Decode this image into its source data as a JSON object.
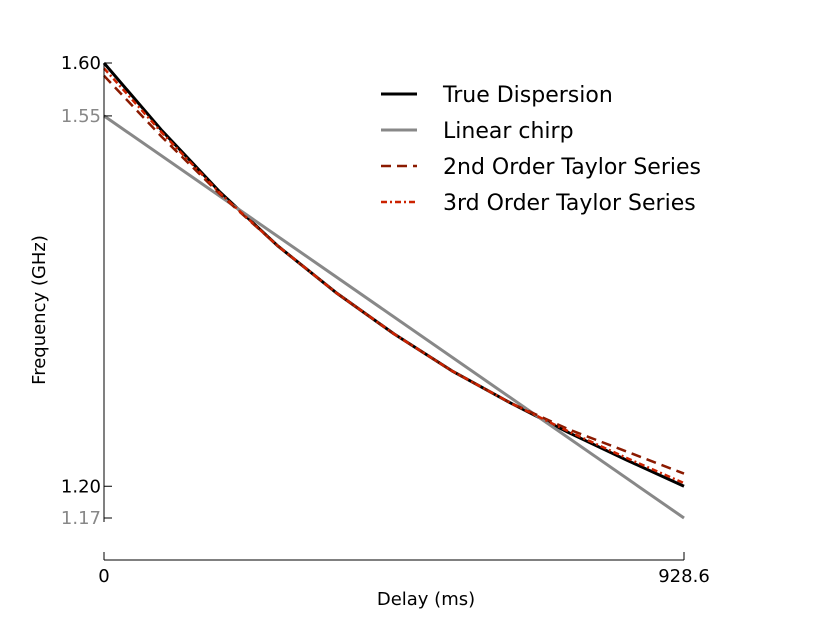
{
  "chart_data": {
    "type": "line",
    "xlabel": "Delay (ms)",
    "ylabel": "Frequency (GHz)",
    "xlim": [
      0,
      928.6
    ],
    "ylim": [
      1.17,
      1.6
    ],
    "x_ticks": [
      {
        "value": 0,
        "label": "0"
      },
      {
        "value": 928.6,
        "label": "928.6"
      }
    ],
    "y_ticks": [
      {
        "value": 1.6,
        "label": "1.60",
        "color": "#000000"
      },
      {
        "value": 1.55,
        "label": "1.55",
        "color": "#888888"
      },
      {
        "value": 1.2,
        "label": "1.20",
        "color": "#000000"
      },
      {
        "value": 1.17,
        "label": "1.17",
        "color": "#888888"
      }
    ],
    "legend_position": "top-right",
    "grid": false,
    "series": [
      {
        "name": "True Dispersion",
        "color": "#000000",
        "style": "solid",
        "x": [
          0,
          92.9,
          185.7,
          278.6,
          371.4,
          464.3,
          557.2,
          650.0,
          742.9,
          835.7,
          928.6
        ],
        "y": [
          1.6,
          1.536,
          1.478,
          1.427,
          1.383,
          1.344,
          1.309,
          1.279,
          1.251,
          1.225,
          1.2
        ]
      },
      {
        "name": "Linear chirp",
        "color": "#888888",
        "style": "solid",
        "x": [
          0,
          928.6
        ],
        "y": [
          1.55,
          1.17
        ]
      },
      {
        "name": "2nd Order Taylor Series",
        "color": "#8b1a00",
        "style": "dashed",
        "x": [
          0,
          92.9,
          185.7,
          278.6,
          371.4,
          464.3,
          557.2,
          650.0,
          742.9,
          835.7,
          928.6
        ],
        "y": [
          1.588,
          1.53,
          1.476,
          1.427,
          1.383,
          1.344,
          1.309,
          1.279,
          1.254,
          1.233,
          1.212
        ]
      },
      {
        "name": "3rd Order Taylor Series",
        "color": "#cc2200",
        "style": "dashdot",
        "x": [
          0,
          92.9,
          185.7,
          278.6,
          371.4,
          464.3,
          557.2,
          650.0,
          742.9,
          835.7,
          928.6
        ],
        "y": [
          1.595,
          1.534,
          1.477,
          1.427,
          1.383,
          1.344,
          1.309,
          1.279,
          1.252,
          1.227,
          1.203
        ]
      }
    ]
  }
}
